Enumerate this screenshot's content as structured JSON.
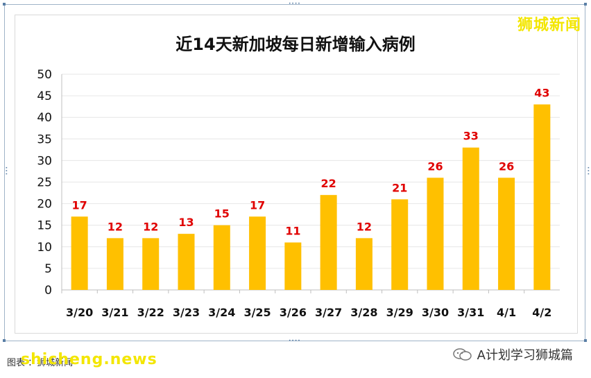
{
  "watermark_top": "狮城新闻",
  "bottom_left_text": "图表 ：狮城新闻",
  "bottom_watermark": "shicheng.news",
  "credit": "A计划学习狮城篇",
  "icon": "wechat-icon",
  "colors": {
    "bar": "#ffc000",
    "label": "#e00000",
    "grid": "#e6e6e6",
    "watermark": "#f3e600"
  },
  "chart_data": {
    "type": "bar",
    "title": "近14天新加坡每日新增输入病例",
    "categories": [
      "3/20",
      "3/21",
      "3/22",
      "3/23",
      "3/24",
      "3/25",
      "3/26",
      "3/27",
      "3/28",
      "3/29",
      "3/30",
      "3/31",
      "4/1",
      "4/2"
    ],
    "values": [
      17,
      12,
      12,
      13,
      15,
      17,
      11,
      22,
      12,
      21,
      26,
      33,
      26,
      43
    ],
    "ylim": [
      0,
      50
    ],
    "yticks": [
      0,
      5,
      10,
      15,
      20,
      25,
      30,
      35,
      40,
      45,
      50
    ],
    "grid": true,
    "data_labels": true,
    "legend": "none"
  }
}
